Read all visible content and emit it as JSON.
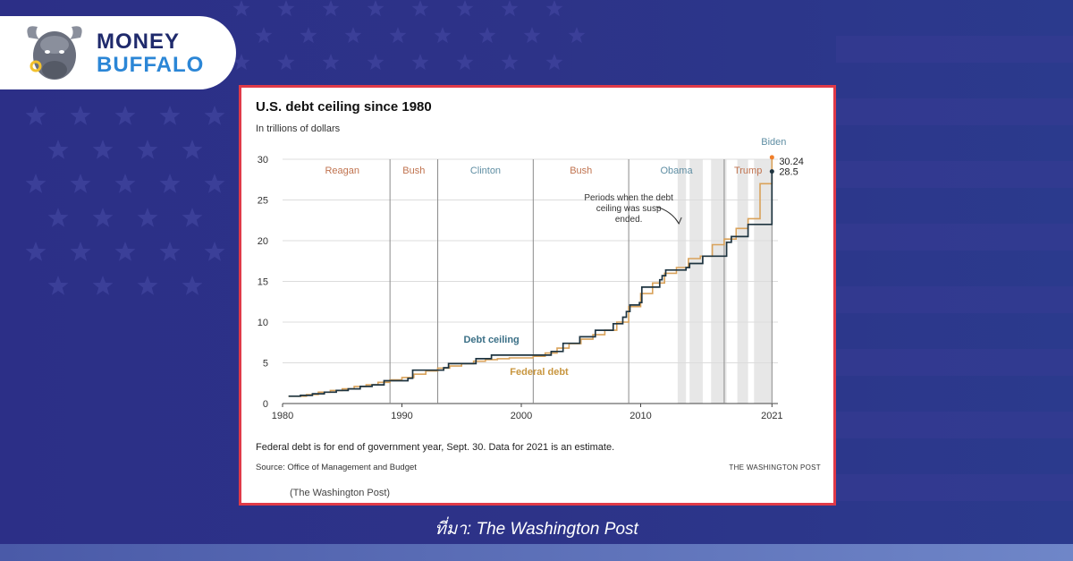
{
  "brand": {
    "name_line1": "MONEY",
    "name_line2": "BUFFALO",
    "logo_icon": "buffalo-head-icon",
    "colors": {
      "navy": "#1f2a6c",
      "blue": "#2b86d6"
    }
  },
  "caption": "ที่มา: The Washington Post",
  "colors": {
    "background": "#2a2f86",
    "card_border": "#e03a48",
    "debt_ceiling": "#1e3440",
    "federal_debt": "#d9a25a",
    "orange_marker": "#f07e2a",
    "suspension_shading": "#e7e7e7"
  },
  "chart_data": {
    "type": "line",
    "title": "U.S. debt ceiling since 1980",
    "subtitle": "In trillions of dollars",
    "xlim": [
      1980,
      2021.5
    ],
    "ylim": [
      0,
      30
    ],
    "x_ticks": [
      1980,
      1990,
      2000,
      2010,
      2021
    ],
    "y_ticks": [
      0,
      5,
      10,
      15,
      20,
      25,
      30
    ],
    "grid": true,
    "presidencies": [
      {
        "name": "Reagan",
        "start": 1981,
        "end": 1989,
        "color": "#c0734f"
      },
      {
        "name": "Bush",
        "start": 1989,
        "end": 1993,
        "color": "#c0734f"
      },
      {
        "name": "Clinton",
        "start": 1993,
        "end": 2001,
        "color": "#5f8ea3"
      },
      {
        "name": "Bush",
        "start": 2001,
        "end": 2009,
        "color": "#c0734f"
      },
      {
        "name": "Obama",
        "start": 2009,
        "end": 2017,
        "color": "#5f8ea3"
      },
      {
        "name": "Trump",
        "start": 2017,
        "end": 2021,
        "color": "#c0734f"
      },
      {
        "name": "Biden",
        "start": 2021,
        "end": 2021.5,
        "color": "#5f8ea3"
      }
    ],
    "suspension_periods": [
      [
        2013.1,
        2013.8
      ],
      [
        2014.1,
        2015.2
      ],
      [
        2015.9,
        2017.2
      ],
      [
        2018.1,
        2019.0
      ],
      [
        2019.5,
        2021.0
      ]
    ],
    "annotation": "Periods when the debt ceiling was suspended.",
    "series": [
      {
        "name": "Debt ceiling",
        "step": true,
        "points": [
          [
            1980.5,
            0.9
          ],
          [
            1981.5,
            1.0
          ],
          [
            1982.5,
            1.2
          ],
          [
            1983.5,
            1.4
          ],
          [
            1984.5,
            1.6
          ],
          [
            1985.5,
            1.8
          ],
          [
            1986.5,
            2.1
          ],
          [
            1987.5,
            2.3
          ],
          [
            1988.5,
            2.8
          ],
          [
            1990.5,
            3.1
          ],
          [
            1990.9,
            4.1
          ],
          [
            1993.5,
            4.4
          ],
          [
            1993.9,
            4.9
          ],
          [
            1996.2,
            5.5
          ],
          [
            1997.5,
            5.95
          ],
          [
            2002.5,
            6.4
          ],
          [
            2003.5,
            7.4
          ],
          [
            2004.9,
            8.2
          ],
          [
            2006.2,
            9.0
          ],
          [
            2007.7,
            9.8
          ],
          [
            2008.5,
            10.6
          ],
          [
            2008.8,
            11.3
          ],
          [
            2009.1,
            12.1
          ],
          [
            2009.9,
            12.4
          ],
          [
            2010.1,
            14.3
          ],
          [
            2011.6,
            15.2
          ],
          [
            2011.8,
            15.7
          ],
          [
            2012.1,
            16.4
          ],
          [
            2013.8,
            16.7
          ],
          [
            2014.1,
            17.2
          ],
          [
            2015.2,
            18.1
          ],
          [
            2017.2,
            19.8
          ],
          [
            2017.6,
            20.5
          ],
          [
            2019.0,
            22.0
          ],
          [
            2021.0,
            28.5
          ]
        ],
        "end_label": "28.5",
        "end_value": 28.5
      },
      {
        "name": "Federal debt",
        "step": true,
        "points": [
          [
            1980.5,
            0.9
          ],
          [
            1982.0,
            1.1
          ],
          [
            1983.0,
            1.4
          ],
          [
            1984.0,
            1.6
          ],
          [
            1985.0,
            1.8
          ],
          [
            1986.0,
            2.1
          ],
          [
            1987.0,
            2.3
          ],
          [
            1988.0,
            2.6
          ],
          [
            1989.0,
            2.9
          ],
          [
            1990.0,
            3.2
          ],
          [
            1991.0,
            3.6
          ],
          [
            1992.0,
            4.0
          ],
          [
            1993.0,
            4.35
          ],
          [
            1994.0,
            4.6
          ],
          [
            1995.0,
            4.9
          ],
          [
            1996.0,
            5.2
          ],
          [
            1997.0,
            5.4
          ],
          [
            1998.0,
            5.5
          ],
          [
            1999.0,
            5.6
          ],
          [
            2000.0,
            5.6
          ],
          [
            2001.0,
            5.8
          ],
          [
            2002.0,
            6.2
          ],
          [
            2003.0,
            6.8
          ],
          [
            2004.0,
            7.35
          ],
          [
            2005.0,
            7.9
          ],
          [
            2006.0,
            8.45
          ],
          [
            2007.0,
            9.0
          ],
          [
            2008.0,
            10.0
          ],
          [
            2009.0,
            11.9
          ],
          [
            2010.0,
            13.5
          ],
          [
            2011.0,
            14.8
          ],
          [
            2012.0,
            16.0
          ],
          [
            2013.0,
            16.7
          ],
          [
            2014.0,
            17.8
          ],
          [
            2015.0,
            18.1
          ],
          [
            2016.0,
            19.5
          ],
          [
            2017.0,
            20.2
          ],
          [
            2018.0,
            21.5
          ],
          [
            2019.0,
            22.7
          ],
          [
            2020.0,
            27.0
          ],
          [
            2021.0,
            30.24
          ]
        ],
        "end_label": "30.24",
        "end_value": 30.24
      }
    ],
    "series_labels": [
      {
        "text": "Debt ceiling",
        "x": 1997.5,
        "y": 7.5,
        "color": "#3a6f86"
      },
      {
        "text": "Federal debt",
        "x": 2001.5,
        "y": 3.5,
        "color": "#c8963f"
      }
    ],
    "footnote": "Federal debt is for end of government year, Sept. 30. Data for 2021 is an estimate.",
    "source": "Source: Office of Management and Budget",
    "credit": "THE WASHINGTON POST",
    "credit_parenthetical": "(The Washington Post)"
  }
}
